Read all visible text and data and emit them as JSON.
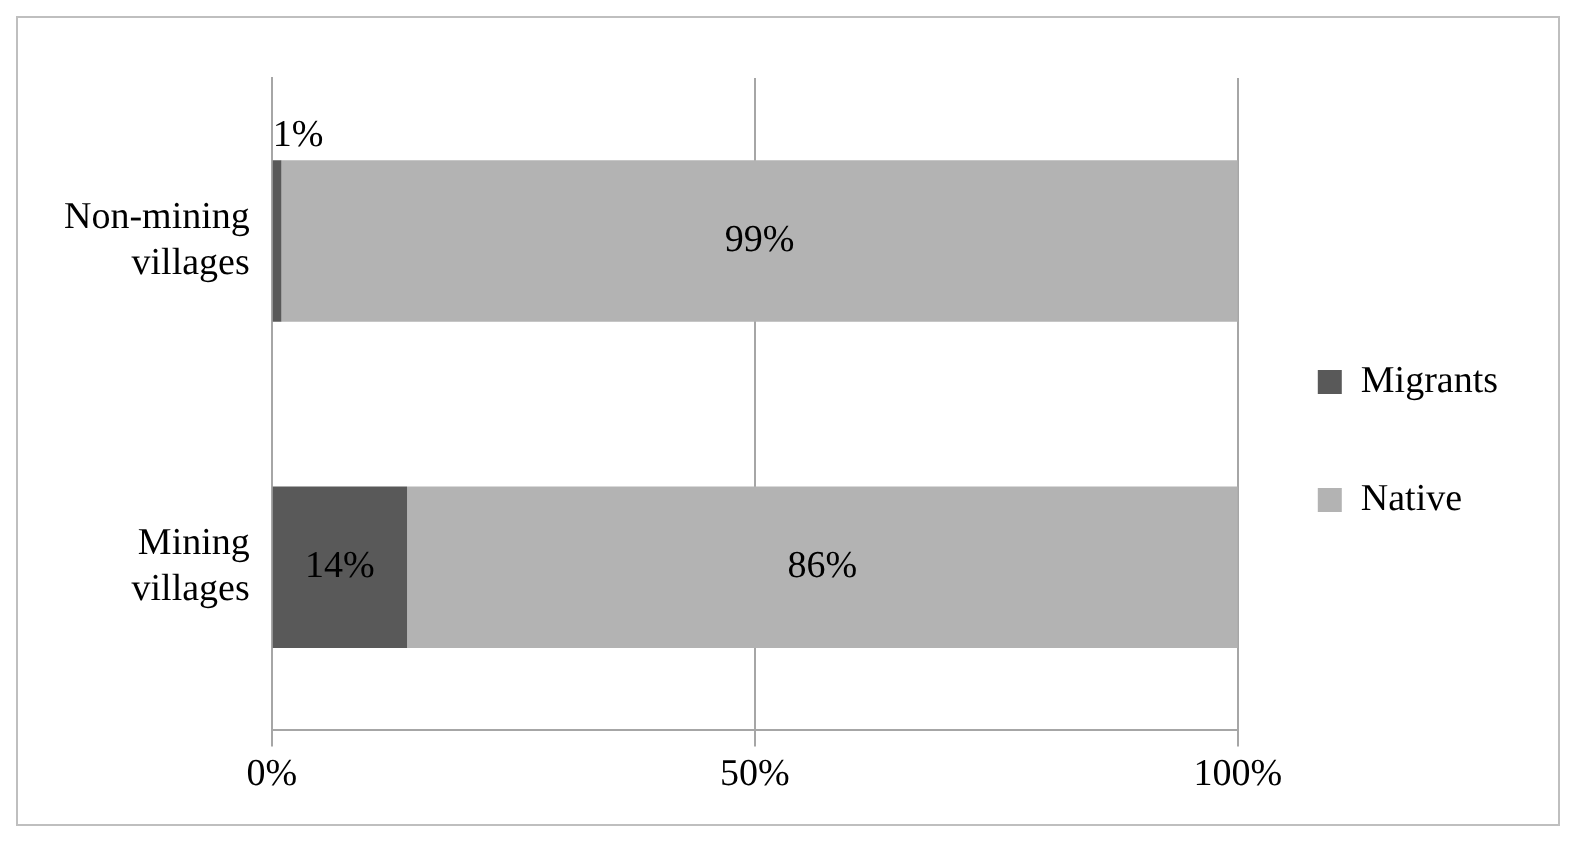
{
  "chart_data": {
    "type": "bar",
    "orientation": "horizontal",
    "stacked": true,
    "categories": [
      "Non-mining villages",
      "Mining villages"
    ],
    "series": [
      {
        "name": "Migrants",
        "color": "#595959",
        "values": [
          1,
          14
        ],
        "value_labels": [
          "1%",
          "14%"
        ]
      },
      {
        "name": "Native",
        "color": "#b3b3b3",
        "values": [
          99,
          86
        ],
        "value_labels": [
          "99%",
          "86%"
        ]
      }
    ],
    "xlim": [
      0,
      100
    ],
    "xticks": [
      {
        "value": 0,
        "label": "0%"
      },
      {
        "value": 50,
        "label": "50%"
      },
      {
        "value": 100,
        "label": "100%"
      }
    ],
    "grid": "x",
    "legend": "right"
  }
}
